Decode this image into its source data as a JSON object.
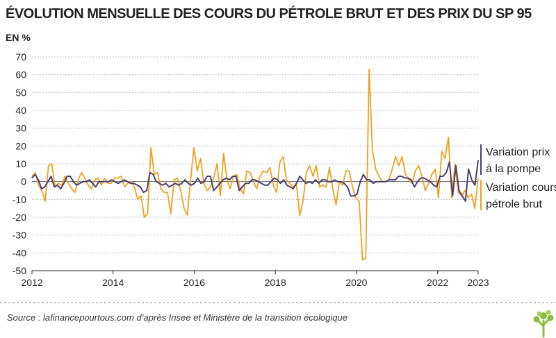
{
  "chart_data": {
    "type": "line",
    "title": "ÉVOLUTION MENSUELLE DES COURS DU PÉTROLE BRUT ET DES PRIX DU SP 95",
    "ylabel": "EN %",
    "xlabel": "",
    "ylim": [
      -50,
      70
    ],
    "yticks": [
      70,
      60,
      50,
      40,
      30,
      20,
      10,
      0,
      -10,
      -20,
      -30,
      -40,
      -50
    ],
    "xlim": [
      2012,
      2023
    ],
    "xticks": [
      "2012",
      "2014",
      "2016",
      "2018",
      "2020",
      "2022",
      "2023"
    ],
    "grid": "horizontal dotted",
    "legend_position": "right",
    "x_start": "2012-01",
    "x_frequency": "monthly",
    "series": [
      {
        "name": "Variation prix à la pompe",
        "label_lines": [
          "Variation prix",
          "à la pompe"
        ],
        "color": "#4b3f72",
        "values": [
          2,
          4,
          1,
          -4,
          -3,
          0,
          3,
          -3,
          -2,
          -4,
          -1,
          3,
          3,
          0,
          -2,
          -1,
          0,
          0,
          1,
          -1,
          -3,
          0,
          0,
          0,
          0,
          1,
          0,
          -1,
          0,
          1,
          0,
          -1,
          -1,
          -2,
          -3,
          -6,
          -5,
          5,
          4,
          0,
          -1,
          -2,
          -1,
          -3,
          -2,
          -1,
          -2,
          -1,
          1,
          -1,
          -2,
          -1,
          2,
          -1,
          0,
          3,
          3,
          -5,
          -3,
          -1,
          1,
          2,
          1,
          3,
          3,
          -5,
          -3,
          -1,
          -1,
          1,
          1,
          0,
          -1,
          -2,
          -2,
          0,
          2,
          1,
          -1,
          1,
          -2,
          -3,
          -4,
          -1,
          3,
          1,
          -1,
          0,
          -1,
          1,
          -1,
          1,
          1,
          0,
          0,
          1,
          0,
          0,
          -1,
          -3,
          -8,
          -8,
          -7,
          0,
          4,
          1,
          1,
          -1,
          0,
          0,
          0,
          0,
          1,
          1,
          1,
          3,
          3,
          2,
          2,
          1,
          -3,
          0,
          2,
          2,
          1,
          0,
          -2,
          -3,
          3,
          3,
          5,
          11,
          -8,
          9,
          -5,
          -8,
          -11,
          7,
          1,
          -2,
          12
        ]
      },
      {
        "name": "Variation cours pétrole brut",
        "label_lines": [
          "Variation cours",
          "pétrole brut"
        ],
        "color": "#f0a01c",
        "values": [
          3,
          5,
          -2,
          -5,
          -11,
          9,
          10,
          -3,
          -1,
          -2,
          3,
          -1,
          -4,
          -6,
          1,
          5,
          2,
          -2,
          -4,
          1,
          2,
          -2,
          2,
          -1,
          -1,
          2,
          2,
          3,
          -3,
          -1,
          0,
          -3,
          -10,
          -8,
          -20,
          -18,
          19,
          4,
          5,
          -4,
          -6,
          -6,
          -18,
          1,
          2,
          -5,
          -15,
          -19,
          1,
          19,
          6,
          13,
          -1,
          -5,
          -3,
          2,
          10,
          -8,
          16,
          1,
          -4,
          3,
          4,
          -4,
          -7,
          6,
          5,
          0,
          -4,
          3,
          6,
          5,
          8,
          -2,
          -6,
          11,
          14,
          1,
          -1,
          -3,
          -1,
          -19,
          -11,
          5,
          9,
          3,
          9,
          -3,
          -2,
          -3,
          8,
          -4,
          -13,
          0,
          -2,
          6,
          6,
          -3,
          -9,
          -11,
          -44,
          -43,
          63,
          18,
          7,
          3,
          0,
          0,
          1,
          7,
          14,
          9,
          14,
          4,
          1,
          -1,
          6,
          9,
          3,
          -5,
          -1,
          4,
          7,
          -9,
          17,
          13,
          25,
          -9,
          10,
          -6,
          -8,
          -5,
          -9,
          -7,
          -15,
          2
        ]
      }
    ]
  },
  "footer": {
    "source": "Source : lafinancepourtous.com d’après Insee et Ministère de la transition écologique",
    "logo_text": "lafinancepourtous.com"
  }
}
